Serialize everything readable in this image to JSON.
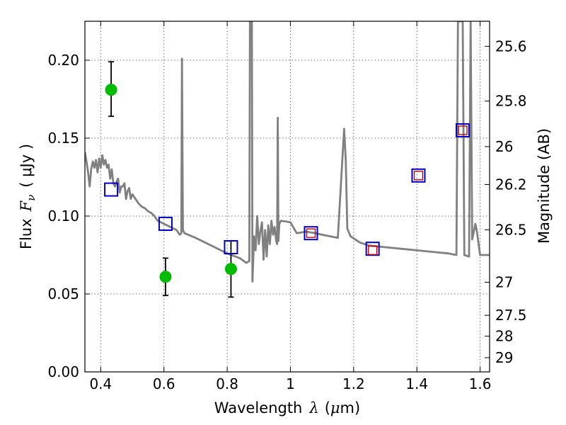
{
  "chart_data": {
    "type": "scatter",
    "x_axis": {
      "label_prefix": "Wavelength",
      "label_symbol": "λ",
      "label_unit_open": "(",
      "label_unit_mu": "μ",
      "label_unit_rest": "m)",
      "range": [
        0.35,
        1.63
      ],
      "ticks": [
        0.4,
        0.6,
        0.8,
        1.0,
        1.2,
        1.4,
        1.6
      ],
      "tick_labels": [
        "0.4",
        "0.6",
        "0.8",
        "1",
        "1.2",
        "1.4",
        "1.6"
      ]
    },
    "y_axis_left": {
      "label_prefix": "Flux",
      "label_symbol": "F",
      "label_sub": "ν",
      "label_unit": "( μJy )",
      "range": [
        0.0,
        0.225
      ],
      "ticks": [
        0.0,
        0.05,
        0.1,
        0.15,
        0.2
      ],
      "tick_labels": [
        "0.00",
        "0.05",
        "0.10",
        "0.15",
        "0.20"
      ]
    },
    "y_axis_right": {
      "label": "Magnitude (AB)",
      "scale": "AB magnitude of left-axis flux",
      "ticks": [
        25.6,
        25.8,
        26,
        26.2,
        26.5,
        27,
        27.5,
        28,
        29
      ],
      "tick_labels": [
        "25.6",
        "25.8",
        "26",
        "26.2",
        "26.5",
        "27",
        "27.5",
        "28",
        "29"
      ]
    },
    "grid": true,
    "series": [
      {
        "kind": "line",
        "color": "#808080",
        "x": [
          0.35,
          0.355,
          0.36,
          0.365,
          0.37,
          0.375,
          0.38,
          0.385,
          0.39,
          0.395,
          0.4,
          0.405,
          0.41,
          0.415,
          0.42,
          0.425,
          0.43,
          0.435,
          0.44,
          0.445,
          0.45,
          0.455,
          0.46,
          0.465,
          0.47,
          0.475,
          0.48,
          0.485,
          0.49,
          0.495,
          0.5,
          0.51,
          0.52,
          0.53,
          0.54,
          0.55,
          0.56,
          0.57,
          0.58,
          0.59,
          0.6,
          0.62,
          0.64,
          0.65,
          0.655,
          0.657,
          0.66,
          0.665,
          0.7,
          0.75,
          0.8,
          0.84,
          0.86,
          0.87,
          0.872,
          0.875,
          0.878,
          0.88,
          0.885,
          0.89,
          0.895,
          0.9,
          0.905,
          0.91,
          0.915,
          0.92,
          0.925,
          0.93,
          0.935,
          0.94,
          0.945,
          0.95,
          0.955,
          0.958,
          0.96,
          0.962,
          0.965,
          0.97,
          1.0,
          1.02,
          1.05,
          1.08,
          1.1,
          1.15,
          1.17,
          1.175,
          1.18,
          1.19,
          1.22,
          1.25,
          1.3,
          1.35,
          1.4,
          1.45,
          1.5,
          1.525,
          1.53,
          1.535,
          1.545,
          1.55,
          1.565,
          1.57,
          1.575,
          1.58,
          1.585,
          1.59,
          1.6,
          1.62,
          1.63
        ],
        "y": [
          0.141,
          0.135,
          0.128,
          0.119,
          0.13,
          0.135,
          0.131,
          0.136,
          0.128,
          0.137,
          0.131,
          0.139,
          0.133,
          0.136,
          0.131,
          0.133,
          0.124,
          0.13,
          0.121,
          0.119,
          0.122,
          0.124,
          0.115,
          0.119,
          0.119,
          0.121,
          0.111,
          0.116,
          0.118,
          0.111,
          0.114,
          0.111,
          0.108,
          0.106,
          0.105,
          0.103,
          0.102,
          0.1,
          0.097,
          0.096,
          0.095,
          0.093,
          0.091,
          0.088,
          0.089,
          0.201,
          0.091,
          0.089,
          0.086,
          0.081,
          0.076,
          0.073,
          0.07,
          0.071,
          0.225,
          0.225,
          0.225,
          0.058,
          0.087,
          0.078,
          0.1,
          0.082,
          0.09,
          0.096,
          0.072,
          0.091,
          0.074,
          0.094,
          0.082,
          0.097,
          0.088,
          0.093,
          0.084,
          0.082,
          0.163,
          0.084,
          0.095,
          0.097,
          0.096,
          0.089,
          0.09,
          0.089,
          0.088,
          0.086,
          0.156,
          0.136,
          0.092,
          0.087,
          0.083,
          0.081,
          0.08,
          0.079,
          0.078,
          0.077,
          0.076,
          0.075,
          0.225,
          0.225,
          0.225,
          0.075,
          0.074,
          0.225,
          0.085,
          0.09,
          0.095,
          0.09,
          0.075,
          0.075,
          0.075
        ]
      },
      {
        "kind": "points",
        "marker": "circle",
        "color": "#00bb00",
        "error_bars": true,
        "x": [
          0.433,
          0.605,
          0.812
        ],
        "y": [
          0.181,
          0.061,
          0.066
        ],
        "y_err_low": [
          0.017,
          0.012,
          0.018
        ],
        "y_err_high": [
          0.018,
          0.012,
          0.018
        ]
      },
      {
        "kind": "points",
        "marker": "square-open",
        "color": "#0000cc",
        "x": [
          0.433,
          0.605,
          0.812,
          1.065,
          1.26,
          1.405,
          1.545
        ],
        "y": [
          0.117,
          0.095,
          0.08,
          0.089,
          0.079,
          0.126,
          0.155
        ]
      },
      {
        "kind": "points",
        "marker": "square-open-small",
        "color": "#cc0000",
        "x": [
          1.065,
          1.26,
          1.405,
          1.545
        ],
        "y": [
          0.089,
          0.078,
          0.126,
          0.155
        ]
      }
    ]
  }
}
